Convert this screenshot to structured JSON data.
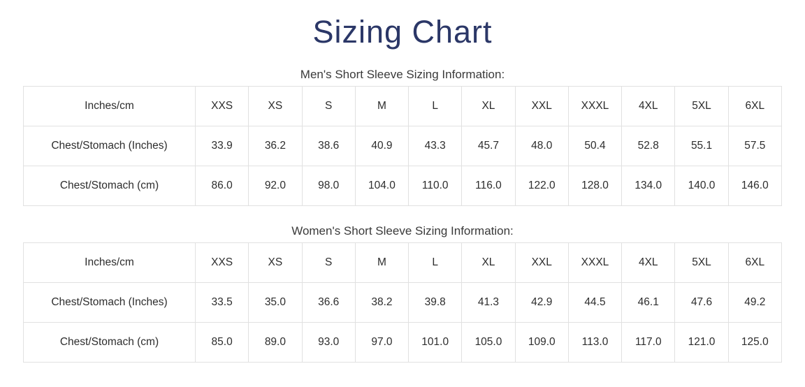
{
  "page": {
    "title": "Sizing Chart"
  },
  "colors": {
    "title_navy": "#2b3767",
    "body_text": "#2d2d2d",
    "subtitle_text": "#3a3a3a",
    "table_border": "#e1e1e1",
    "background": "#ffffff"
  },
  "chart_data": [
    {
      "type": "table",
      "title": "Men's Short Sleeve Sizing Information:",
      "columns": [
        "Inches/cm",
        "XXS",
        "XS",
        "S",
        "M",
        "L",
        "XL",
        "XXL",
        "XXXL",
        "4XL",
        "5XL",
        "6XL"
      ],
      "rows": [
        {
          "label": "Chest/Stomach (Inches)",
          "values": [
            "33.9",
            "36.2",
            "38.6",
            "40.9",
            "43.3",
            "45.7",
            "48.0",
            "50.4",
            "52.8",
            "55.1",
            "57.5"
          ]
        },
        {
          "label": "Chest/Stomach (cm)",
          "values": [
            "86.0",
            "92.0",
            "98.0",
            "104.0",
            "110.0",
            "116.0",
            "122.0",
            "128.0",
            "134.0",
            "140.0",
            "146.0"
          ]
        }
      ]
    },
    {
      "type": "table",
      "title": "Women's Short Sleeve Sizing Information:",
      "columns": [
        "Inches/cm",
        "XXS",
        "XS",
        "S",
        "M",
        "L",
        "XL",
        "XXL",
        "XXXL",
        "4XL",
        "5XL",
        "6XL"
      ],
      "rows": [
        {
          "label": "Chest/Stomach (Inches)",
          "values": [
            "33.5",
            "35.0",
            "36.6",
            "38.2",
            "39.8",
            "41.3",
            "42.9",
            "44.5",
            "46.1",
            "47.6",
            "49.2"
          ]
        },
        {
          "label": "Chest/Stomach (cm)",
          "values": [
            "85.0",
            "89.0",
            "93.0",
            "97.0",
            "101.0",
            "105.0",
            "109.0",
            "113.0",
            "117.0",
            "121.0",
            "125.0"
          ]
        }
      ]
    }
  ]
}
